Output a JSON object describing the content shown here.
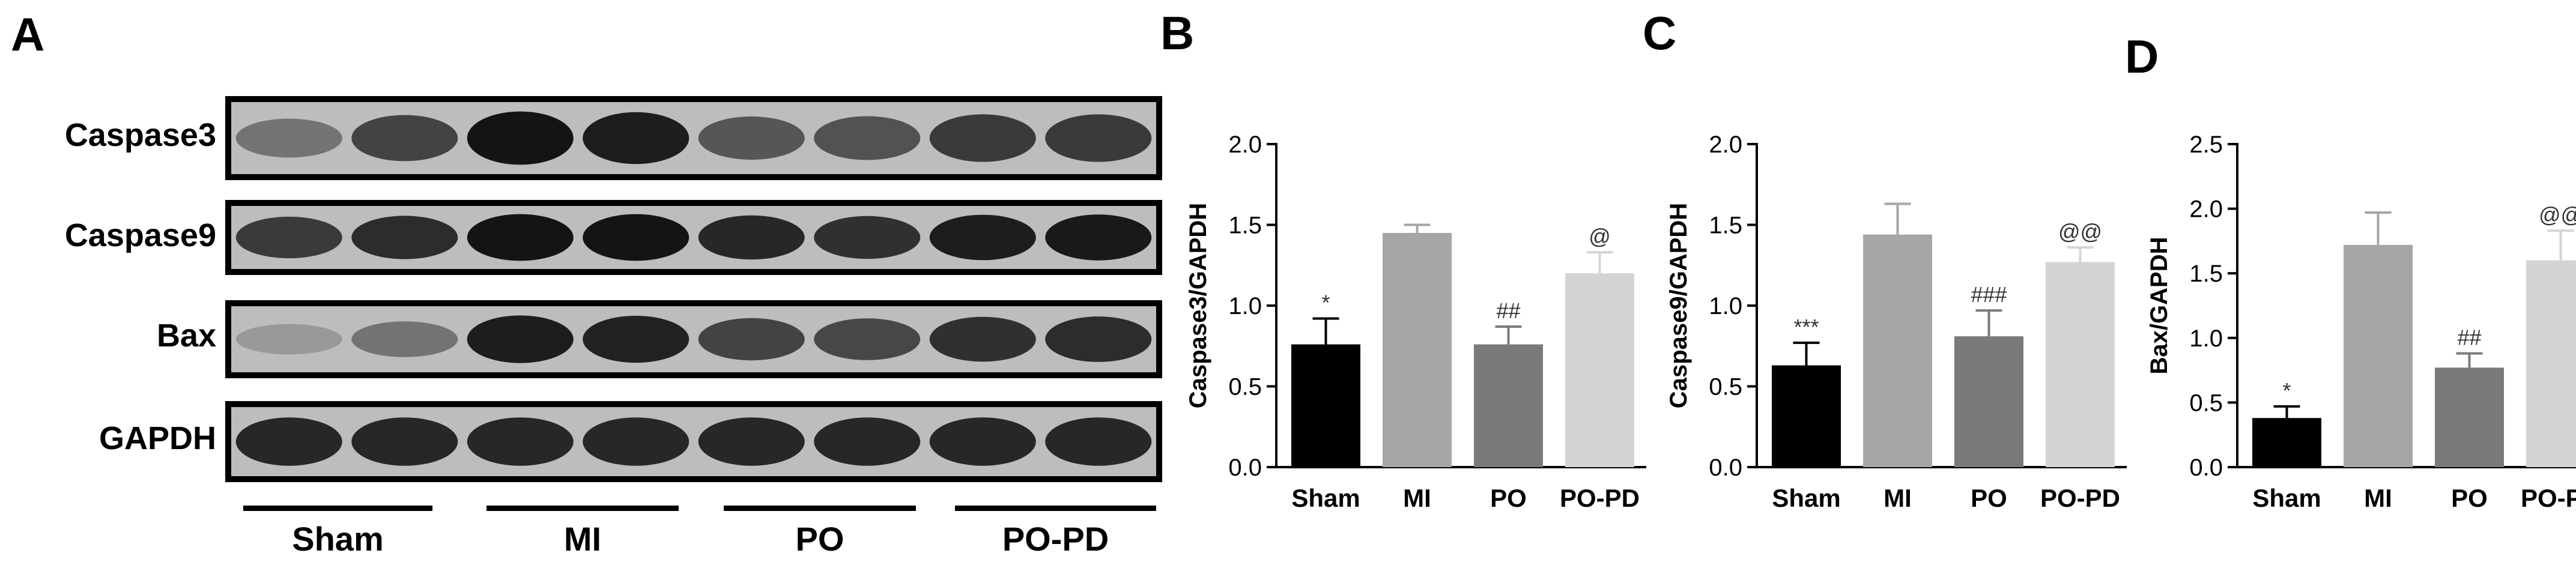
{
  "panels": {
    "a": "A",
    "b": "B",
    "c": "C",
    "d": "D"
  },
  "blot": {
    "rows": [
      {
        "label": "Caspase3",
        "intensity": [
          0.45,
          0.7,
          0.95,
          0.9,
          0.6,
          0.62,
          0.75,
          0.75
        ]
      },
      {
        "label": "Caspase9",
        "intensity": [
          0.75,
          0.82,
          0.95,
          0.95,
          0.85,
          0.8,
          0.9,
          0.92
        ]
      },
      {
        "label": "Bax",
        "intensity": [
          0.25,
          0.45,
          0.9,
          0.88,
          0.7,
          0.68,
          0.8,
          0.82
        ]
      },
      {
        "label": "GAPDH",
        "intensity": [
          0.85,
          0.85,
          0.85,
          0.85,
          0.85,
          0.85,
          0.85,
          0.85
        ]
      }
    ],
    "groups": [
      "Sham",
      "MI",
      "PO",
      "PO-PD"
    ]
  },
  "chart_data": [
    {
      "type": "bar",
      "panel": "B",
      "categories": [
        "Sham",
        "MI",
        "PO",
        "PO-PD"
      ],
      "values": [
        0.76,
        1.45,
        0.76,
        1.2
      ],
      "errors": [
        0.16,
        0.05,
        0.11,
        0.13
      ],
      "annotations": [
        "*",
        "",
        "##",
        "@"
      ],
      "ylabel": "Caspase3/GAPDH",
      "ylim": [
        0,
        2.0
      ],
      "yticks": [
        "0.0",
        "0.5",
        "1.0",
        "1.5",
        "2.0"
      ],
      "colors": [
        "#000000",
        "#a6a6a6",
        "#7a7a7a",
        "#d4d4d4"
      ]
    },
    {
      "type": "bar",
      "panel": "C",
      "categories": [
        "Sham",
        "MI",
        "PO",
        "PO-PD"
      ],
      "values": [
        0.63,
        1.44,
        0.81,
        1.27
      ],
      "errors": [
        0.14,
        0.19,
        0.16,
        0.09
      ],
      "annotations": [
        "***",
        "",
        "###",
        "@@"
      ],
      "ylabel": "Caspase9/GAPDH",
      "ylim": [
        0,
        2.0
      ],
      "yticks": [
        "0.0",
        "0.5",
        "1.0",
        "1.5",
        "2.0"
      ],
      "colors": [
        "#000000",
        "#a6a6a6",
        "#7a7a7a",
        "#d4d4d4"
      ]
    },
    {
      "type": "bar",
      "panel": "D",
      "categories": [
        "Sham",
        "MI",
        "PO",
        "PO-PD"
      ],
      "values": [
        0.38,
        1.72,
        0.77,
        1.6
      ],
      "errors": [
        0.09,
        0.25,
        0.11,
        0.23
      ],
      "annotations": [
        "*",
        "",
        "##",
        "@@"
      ],
      "ylabel": "Bax/GAPDH",
      "ylim": [
        0,
        2.5
      ],
      "yticks": [
        "0.0",
        "0.5",
        "1.0",
        "1.5",
        "2.0",
        "2.5"
      ],
      "colors": [
        "#000000",
        "#a6a6a6",
        "#7a7a7a",
        "#d4d4d4"
      ]
    }
  ]
}
